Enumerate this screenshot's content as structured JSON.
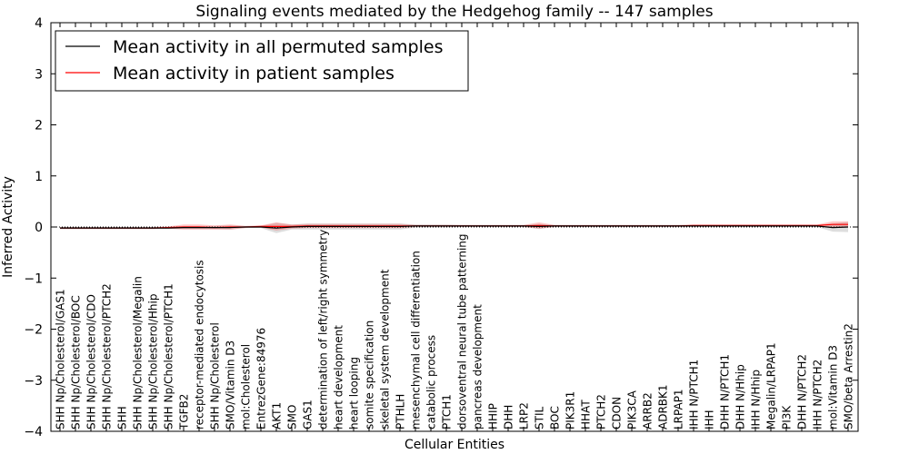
{
  "chart_data": {
    "type": "line",
    "title": "Signaling events mediated by the Hedgehog family -- 147 samples",
    "xlabel": "Cellular Entities",
    "ylabel": "Inferred Activity",
    "ylim": [
      -4,
      4
    ],
    "yticks": [
      "−4",
      "−3",
      "−2",
      "−1",
      "0",
      "1",
      "2",
      "3",
      "4"
    ],
    "grid": false,
    "legend_position": "top-left",
    "categories": [
      "SHH Np/Cholesterol/GAS1",
      "SHH Np/Cholesterol/BOC",
      "SHH Np/Cholesterol/CDO",
      "SHH Np/Cholesterol/PTCH2",
      "SHH",
      "SHH Np/Cholesterol/Megalin",
      "SHH Np/Cholesterol/Hhip",
      "SHH Np/Cholesterol/PTCH1",
      "TGFB2",
      "receptor-mediated endocytosis",
      "SHH Np/Cholesterol",
      "SMO/Vitamin D3",
      "mol:Cholesterol",
      "EntrezGene:84976",
      "AKT1",
      "SMO",
      "GAS1",
      "determination of left/right symmetry",
      "heart development",
      "heart looping",
      "somite specification",
      "skeletal system development",
      "PTHLH",
      "mesenchymal cell differentiation",
      "catabolic process",
      "PTCH1",
      "dorsoventral neural tube patterning",
      "pancreas development",
      "HHIP",
      "DHH",
      "LRP2",
      "STIL",
      "BOC",
      "PIK3R1",
      "HHAT",
      "PTCH2",
      "CDON",
      "PIK3CA",
      "ARRB2",
      "ADRBK1",
      "LRPAP1",
      "IHH N/PTCH1",
      "IHH",
      "DHH N/PTCH1",
      "DHH N/Hhip",
      "IHH N/Hhip",
      "Megalin/LRPAP1",
      "PI3K",
      "DHH N/PTCH2",
      "IHH N/PTCH2",
      "mol:Vitamin D3",
      "SMO/beta Arrestin2"
    ],
    "series": [
      {
        "name": "Mean activity in all permuted samples",
        "color": "#000000",
        "values": [
          -0.02,
          -0.02,
          -0.02,
          -0.02,
          -0.02,
          -0.02,
          -0.02,
          -0.02,
          -0.01,
          -0.01,
          -0.01,
          -0.01,
          0.0,
          0.0,
          -0.02,
          0.0,
          0.01,
          0.01,
          0.01,
          0.01,
          0.01,
          0.01,
          0.01,
          0.02,
          0.02,
          0.02,
          0.02,
          0.02,
          0.02,
          0.02,
          0.02,
          0.01,
          0.02,
          0.02,
          0.02,
          0.02,
          0.02,
          0.02,
          0.02,
          0.02,
          0.02,
          0.02,
          0.02,
          0.02,
          0.02,
          0.02,
          0.02,
          0.02,
          0.02,
          0.02,
          -0.01,
          0.0
        ],
        "band": [
          0.02,
          0.02,
          0.02,
          0.02,
          0.02,
          0.02,
          0.02,
          0.02,
          0.03,
          0.03,
          0.03,
          0.04,
          0.02,
          0.02,
          0.1,
          0.05,
          0.06,
          0.06,
          0.06,
          0.06,
          0.06,
          0.06,
          0.06,
          0.03,
          0.03,
          0.03,
          0.02,
          0.02,
          0.02,
          0.02,
          0.02,
          0.05,
          0.02,
          0.02,
          0.02,
          0.02,
          0.02,
          0.02,
          0.02,
          0.02,
          0.02,
          0.02,
          0.02,
          0.02,
          0.02,
          0.02,
          0.02,
          0.02,
          0.02,
          0.02,
          0.08,
          0.1
        ]
      },
      {
        "name": "Mean activity in patient samples",
        "color": "#ff0000",
        "values": [
          -0.02,
          -0.02,
          -0.02,
          -0.02,
          -0.02,
          -0.02,
          -0.02,
          -0.01,
          0.0,
          0.0,
          -0.01,
          0.0,
          0.0,
          0.01,
          0.01,
          0.01,
          0.02,
          0.02,
          0.02,
          0.02,
          0.02,
          0.02,
          0.02,
          0.02,
          0.02,
          0.02,
          0.02,
          0.02,
          0.02,
          0.02,
          0.02,
          0.03,
          0.02,
          0.02,
          0.02,
          0.02,
          0.02,
          0.02,
          0.02,
          0.02,
          0.02,
          0.03,
          0.03,
          0.03,
          0.03,
          0.03,
          0.03,
          0.03,
          0.03,
          0.03,
          0.05,
          0.05
        ],
        "band": [
          0.02,
          0.02,
          0.02,
          0.02,
          0.02,
          0.02,
          0.02,
          0.02,
          0.05,
          0.05,
          0.04,
          0.05,
          0.02,
          0.02,
          0.08,
          0.04,
          0.04,
          0.04,
          0.04,
          0.04,
          0.04,
          0.04,
          0.04,
          0.02,
          0.02,
          0.02,
          0.02,
          0.02,
          0.02,
          0.02,
          0.02,
          0.06,
          0.02,
          0.02,
          0.02,
          0.02,
          0.02,
          0.02,
          0.02,
          0.02,
          0.02,
          0.02,
          0.02,
          0.02,
          0.02,
          0.02,
          0.02,
          0.02,
          0.02,
          0.02,
          0.06,
          0.06
        ]
      }
    ]
  }
}
